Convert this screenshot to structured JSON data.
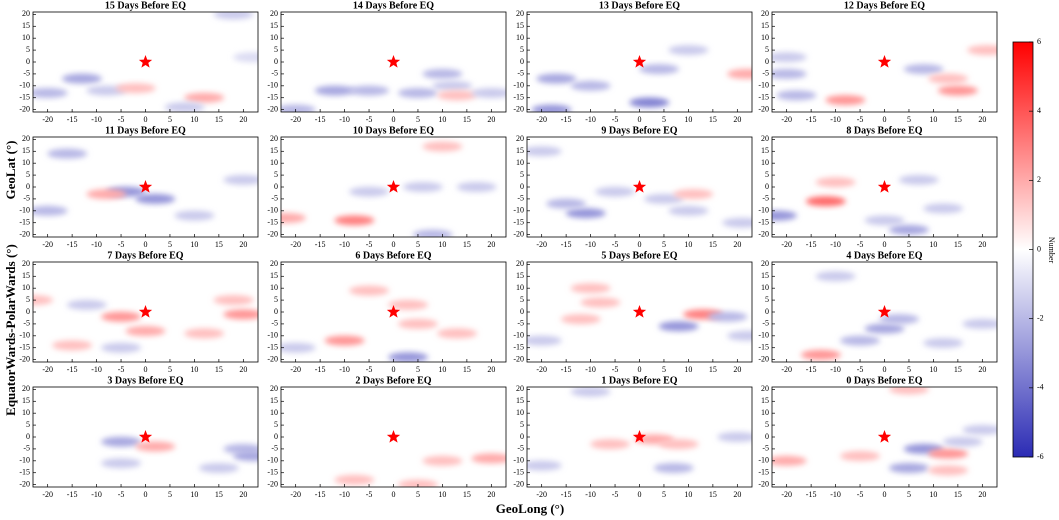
{
  "figure": {
    "xlabel": "GeoLong (°)",
    "ylabel": "EquatorWards-PolarWards (°)",
    "ylabel2": "GeoLat (°)",
    "epicenter": {
      "x": 0,
      "y": 0,
      "color": "#ff0000"
    },
    "colorbar": {
      "label": "Number",
      "zlim": [
        -6,
        6
      ],
      "zticks": [
        -6,
        -4,
        -2,
        0,
        2,
        4,
        6
      ],
      "colors": [
        "#2b2bb4",
        "#ffffff",
        "#ff0000"
      ]
    }
  },
  "chart_data": [
    {
      "type": "heatmap",
      "title": "15 Days Before EQ",
      "xlim": [
        -23,
        23
      ],
      "ylim": [
        -21,
        21
      ],
      "xticks": [
        -20,
        -15,
        -10,
        -5,
        0,
        5,
        10,
        15,
        20
      ],
      "yticks": [
        -20,
        -15,
        -10,
        -5,
        0,
        5,
        10,
        15,
        20
      ],
      "cells": [
        {
          "x": -13,
          "y": -7,
          "value": -2.5
        },
        {
          "x": -20,
          "y": -13,
          "value": -2
        },
        {
          "x": -8,
          "y": -12,
          "value": -1.5
        },
        {
          "x": -2,
          "y": -11,
          "value": 1.5
        },
        {
          "x": 12,
          "y": -15,
          "value": 2
        },
        {
          "x": 8,
          "y": -19,
          "value": -1.5
        },
        {
          "x": 18,
          "y": 20,
          "value": -1.5
        },
        {
          "x": 22,
          "y": 2,
          "value": -1
        }
      ]
    },
    {
      "type": "heatmap",
      "title": "14 Days Before EQ",
      "xlim": [
        -23,
        23
      ],
      "ylim": [
        -21,
        21
      ],
      "xticks": [
        -20,
        -15,
        -10,
        -5,
        0,
        5,
        10,
        15,
        20
      ],
      "yticks": [
        -20,
        -15,
        -10,
        -5,
        0,
        5,
        10,
        15,
        20
      ],
      "cells": [
        {
          "x": -12,
          "y": -12,
          "value": -2.5
        },
        {
          "x": -5,
          "y": -12,
          "value": -2
        },
        {
          "x": 5,
          "y": -13,
          "value": -2
        },
        {
          "x": 10,
          "y": -5,
          "value": -2
        },
        {
          "x": 12,
          "y": -10,
          "value": -1.5
        },
        {
          "x": -20,
          "y": -20,
          "value": -2
        },
        {
          "x": 13,
          "y": -14,
          "value": 1.5
        },
        {
          "x": 20,
          "y": -13,
          "value": -1.5
        }
      ]
    },
    {
      "type": "heatmap",
      "title": "13 Days Before EQ",
      "xlim": [
        -23,
        23
      ],
      "ylim": [
        -21,
        21
      ],
      "xticks": [
        -20,
        -15,
        -10,
        -5,
        0,
        5,
        10,
        15,
        20
      ],
      "yticks": [
        -20,
        -15,
        -10,
        -5,
        0,
        5,
        10,
        15,
        20
      ],
      "cells": [
        {
          "x": -17,
          "y": -7,
          "value": -2.5
        },
        {
          "x": -10,
          "y": -10,
          "value": -2
        },
        {
          "x": -18,
          "y": -20,
          "value": -3
        },
        {
          "x": 2,
          "y": -17,
          "value": -3.5
        },
        {
          "x": 4,
          "y": -3,
          "value": -2
        },
        {
          "x": 10,
          "y": 5,
          "value": -1.5
        },
        {
          "x": 22,
          "y": -5,
          "value": 2
        }
      ]
    },
    {
      "type": "heatmap",
      "title": "12 Days Before EQ",
      "xlim": [
        -23,
        23
      ],
      "ylim": [
        -21,
        21
      ],
      "xticks": [
        -20,
        -15,
        -10,
        -5,
        0,
        5,
        10,
        15,
        20
      ],
      "yticks": [
        -20,
        -15,
        -10,
        -5,
        0,
        5,
        10,
        15,
        20
      ],
      "cells": [
        {
          "x": -20,
          "y": -5,
          "value": -2
        },
        {
          "x": -18,
          "y": -14,
          "value": -2
        },
        {
          "x": -8,
          "y": -16,
          "value": 2.5
        },
        {
          "x": 8,
          "y": -3,
          "value": -2
        },
        {
          "x": 13,
          "y": -7,
          "value": 1.5
        },
        {
          "x": 15,
          "y": -12,
          "value": 2.5
        },
        {
          "x": 21,
          "y": 5,
          "value": 1.5
        },
        {
          "x": -20,
          "y": 2,
          "value": -1.5
        }
      ]
    },
    {
      "type": "heatmap",
      "title": "11 Days Before EQ",
      "xlim": [
        -23,
        23
      ],
      "ylim": [
        -21,
        21
      ],
      "xticks": [
        -20,
        -15,
        -10,
        -5,
        0,
        5,
        10,
        15,
        20
      ],
      "yticks": [
        -20,
        -15,
        -10,
        -5,
        0,
        5,
        10,
        15,
        20
      ],
      "cells": [
        {
          "x": -16,
          "y": 14,
          "value": -2
        },
        {
          "x": -4,
          "y": -2,
          "value": -3
        },
        {
          "x": 2,
          "y": -5,
          "value": -3
        },
        {
          "x": -20,
          "y": -10,
          "value": -2
        },
        {
          "x": 10,
          "y": -12,
          "value": -1.5
        },
        {
          "x": 20,
          "y": 3,
          "value": -1.5
        },
        {
          "x": -8,
          "y": -3,
          "value": 2
        }
      ]
    },
    {
      "type": "heatmap",
      "title": "10 Days Before EQ",
      "xlim": [
        -23,
        23
      ],
      "ylim": [
        -21,
        21
      ],
      "xticks": [
        -20,
        -15,
        -10,
        -5,
        0,
        5,
        10,
        15,
        20
      ],
      "yticks": [
        -20,
        -15,
        -10,
        -5,
        0,
        5,
        10,
        15,
        20
      ],
      "cells": [
        {
          "x": -5,
          "y": -2,
          "value": -1.5
        },
        {
          "x": -8,
          "y": -14,
          "value": 3
        },
        {
          "x": 6,
          "y": 0,
          "value": -1.5
        },
        {
          "x": 17,
          "y": 0,
          "value": -1.5
        },
        {
          "x": 10,
          "y": 17,
          "value": 1.5
        },
        {
          "x": -22,
          "y": -13,
          "value": 2
        },
        {
          "x": 8,
          "y": -20,
          "value": -2
        }
      ]
    },
    {
      "type": "heatmap",
      "title": "9 Days Before EQ",
      "xlim": [
        -23,
        23
      ],
      "ylim": [
        -21,
        21
      ],
      "xticks": [
        -20,
        -15,
        -10,
        -5,
        0,
        5,
        10,
        15,
        20
      ],
      "yticks": [
        -20,
        -15,
        -10,
        -5,
        0,
        5,
        10,
        15,
        20
      ],
      "cells": [
        {
          "x": -20,
          "y": 15,
          "value": -1.5
        },
        {
          "x": -11,
          "y": -11,
          "value": -3
        },
        {
          "x": -15,
          "y": -7,
          "value": -2
        },
        {
          "x": -5,
          "y": -2,
          "value": -1.5
        },
        {
          "x": 5,
          "y": -5,
          "value": -1.5
        },
        {
          "x": 11,
          "y": -3,
          "value": 1.5
        },
        {
          "x": 10,
          "y": -10,
          "value": -1.5
        },
        {
          "x": 21,
          "y": -15,
          "value": -1.5
        }
      ]
    },
    {
      "type": "heatmap",
      "title": "8 Days Before EQ",
      "xlim": [
        -23,
        23
      ],
      "ylim": [
        -21,
        21
      ],
      "xticks": [
        -20,
        -15,
        -10,
        -5,
        0,
        5,
        10,
        15,
        20
      ],
      "yticks": [
        -20,
        -15,
        -10,
        -5,
        0,
        5,
        10,
        15,
        20
      ],
      "cells": [
        {
          "x": -22,
          "y": -12,
          "value": -3
        },
        {
          "x": -12,
          "y": -6,
          "value": 3.5
        },
        {
          "x": 0,
          "y": -14,
          "value": -1.5
        },
        {
          "x": 5,
          "y": -18,
          "value": -2.5
        },
        {
          "x": 7,
          "y": 3,
          "value": -1.5
        },
        {
          "x": 12,
          "y": -9,
          "value": -1.5
        },
        {
          "x": -10,
          "y": 2,
          "value": 1.5
        }
      ]
    },
    {
      "type": "heatmap",
      "title": "7 Days Before EQ",
      "xlim": [
        -23,
        23
      ],
      "ylim": [
        -21,
        21
      ],
      "xticks": [
        -20,
        -15,
        -10,
        -5,
        0,
        5,
        10,
        15,
        20
      ],
      "yticks": [
        -20,
        -15,
        -10,
        -5,
        0,
        5,
        10,
        15,
        20
      ],
      "cells": [
        {
          "x": -15,
          "y": -14,
          "value": 1.5
        },
        {
          "x": -5,
          "y": -2,
          "value": 2.5
        },
        {
          "x": 0,
          "y": -8,
          "value": 2
        },
        {
          "x": 12,
          "y": -9,
          "value": 1.5
        },
        {
          "x": 20,
          "y": -1,
          "value": 2.5
        },
        {
          "x": 18,
          "y": 5,
          "value": 1.5
        },
        {
          "x": -5,
          "y": -15,
          "value": -1.5
        },
        {
          "x": -23,
          "y": 5,
          "value": 1.5
        },
        {
          "x": -12,
          "y": 3,
          "value": -1.5
        }
      ]
    },
    {
      "type": "heatmap",
      "title": "6 Days Before EQ",
      "xlim": [
        -23,
        23
      ],
      "ylim": [
        -21,
        21
      ],
      "xticks": [
        -20,
        -15,
        -10,
        -5,
        0,
        5,
        10,
        15,
        20
      ],
      "yticks": [
        -20,
        -15,
        -10,
        -5,
        0,
        5,
        10,
        15,
        20
      ],
      "cells": [
        {
          "x": -10,
          "y": -12,
          "value": 2.5
        },
        {
          "x": 3,
          "y": -19,
          "value": -3
        },
        {
          "x": -20,
          "y": -15,
          "value": -1.5
        },
        {
          "x": 5,
          "y": -5,
          "value": 1.5
        },
        {
          "x": 13,
          "y": -9,
          "value": 1.5
        },
        {
          "x": -5,
          "y": 9,
          "value": 1.5
        },
        {
          "x": 3,
          "y": 3,
          "value": 1.5
        }
      ]
    },
    {
      "type": "heatmap",
      "title": "5 Days Before EQ",
      "xlim": [
        -23,
        23
      ],
      "ylim": [
        -21,
        21
      ],
      "xticks": [
        -20,
        -15,
        -10,
        -5,
        0,
        5,
        10,
        15,
        20
      ],
      "yticks": [
        -20,
        -15,
        -10,
        -5,
        0,
        5,
        10,
        15,
        20
      ],
      "cells": [
        {
          "x": -10,
          "y": 10,
          "value": 1.5
        },
        {
          "x": -8,
          "y": 4,
          "value": 1.5
        },
        {
          "x": 8,
          "y": -6,
          "value": -3
        },
        {
          "x": 13,
          "y": -1,
          "value": 3
        },
        {
          "x": 18,
          "y": -2,
          "value": -2
        },
        {
          "x": -20,
          "y": -12,
          "value": -1.5
        },
        {
          "x": -12,
          "y": -3,
          "value": 1.5
        },
        {
          "x": 22,
          "y": -10,
          "value": -1.5
        }
      ]
    },
    {
      "type": "heatmap",
      "title": "4 Days Before EQ",
      "xlim": [
        -23,
        23
      ],
      "ylim": [
        -21,
        21
      ],
      "xticks": [
        -20,
        -15,
        -10,
        -5,
        0,
        5,
        10,
        15,
        20
      ],
      "yticks": [
        -20,
        -15,
        -10,
        -5,
        0,
        5,
        10,
        15,
        20
      ],
      "cells": [
        {
          "x": 0,
          "y": -7,
          "value": -2.5
        },
        {
          "x": -5,
          "y": -12,
          "value": -2
        },
        {
          "x": 3,
          "y": -3,
          "value": -2
        },
        {
          "x": -13,
          "y": -18,
          "value": 2.5
        },
        {
          "x": 12,
          "y": -13,
          "value": -1.5
        },
        {
          "x": 20,
          "y": -5,
          "value": -1.5
        },
        {
          "x": -10,
          "y": 15,
          "value": -1.5
        }
      ]
    },
    {
      "type": "heatmap",
      "title": "3 Days Before EQ",
      "xlim": [
        -23,
        23
      ],
      "ylim": [
        -21,
        21
      ],
      "xticks": [
        -20,
        -15,
        -10,
        -5,
        0,
        5,
        10,
        15,
        20
      ],
      "yticks": [
        -20,
        -15,
        -10,
        -5,
        0,
        5,
        10,
        15,
        20
      ],
      "cells": [
        {
          "x": -5,
          "y": -2,
          "value": -2.5
        },
        {
          "x": 2,
          "y": -4,
          "value": 2
        },
        {
          "x": -5,
          "y": -11,
          "value": -1.5
        },
        {
          "x": 20,
          "y": -5,
          "value": -2
        },
        {
          "x": 15,
          "y": -13,
          "value": -1.5
        },
        {
          "x": 22,
          "y": -8,
          "value": -2.5
        }
      ]
    },
    {
      "type": "heatmap",
      "title": "2 Days Before EQ",
      "xlim": [
        -23,
        23
      ],
      "ylim": [
        -21,
        21
      ],
      "xticks": [
        -20,
        -15,
        -10,
        -5,
        0,
        5,
        10,
        15,
        20
      ],
      "yticks": [
        -20,
        -15,
        -10,
        -5,
        0,
        5,
        10,
        15,
        20
      ],
      "cells": [
        {
          "x": 20,
          "y": -9,
          "value": 2
        },
        {
          "x": -8,
          "y": -18,
          "value": 1.5
        },
        {
          "x": 5,
          "y": -20,
          "value": 1.5
        },
        {
          "x": 10,
          "y": -10,
          "value": 1.5
        }
      ]
    },
    {
      "type": "heatmap",
      "title": "1 Days Before EQ",
      "xlim": [
        -23,
        23
      ],
      "ylim": [
        -21,
        21
      ],
      "xticks": [
        -20,
        -15,
        -10,
        -5,
        0,
        5,
        10,
        15,
        20
      ],
      "yticks": [
        -20,
        -15,
        -10,
        -5,
        0,
        5,
        10,
        15,
        20
      ],
      "cells": [
        {
          "x": -10,
          "y": 19,
          "value": -1.5
        },
        {
          "x": 3,
          "y": -1,
          "value": 2
        },
        {
          "x": 8,
          "y": -3,
          "value": 1.5
        },
        {
          "x": -20,
          "y": -12,
          "value": -1.5
        },
        {
          "x": 7,
          "y": -13,
          "value": -2
        },
        {
          "x": 20,
          "y": 0,
          "value": -1.5
        },
        {
          "x": -6,
          "y": -3,
          "value": 1.5
        }
      ]
    },
    {
      "type": "heatmap",
      "title": "0 Days Before EQ",
      "xlim": [
        -23,
        23
      ],
      "ylim": [
        -21,
        21
      ],
      "xticks": [
        -20,
        -15,
        -10,
        -5,
        0,
        5,
        10,
        15,
        20
      ],
      "yticks": [
        -20,
        -15,
        -10,
        -5,
        0,
        5,
        10,
        15,
        20
      ],
      "cells": [
        {
          "x": -20,
          "y": -10,
          "value": 2
        },
        {
          "x": 8,
          "y": -5,
          "value": -3
        },
        {
          "x": 5,
          "y": -13,
          "value": -2.5
        },
        {
          "x": 13,
          "y": -7,
          "value": 2.5
        },
        {
          "x": 16,
          "y": -2,
          "value": -1.5
        },
        {
          "x": 13,
          "y": -14,
          "value": 1.5
        },
        {
          "x": -5,
          "y": -8,
          "value": 1.5
        },
        {
          "x": 20,
          "y": 3,
          "value": -1.5
        },
        {
          "x": 5,
          "y": 20,
          "value": 1.5
        }
      ]
    }
  ]
}
